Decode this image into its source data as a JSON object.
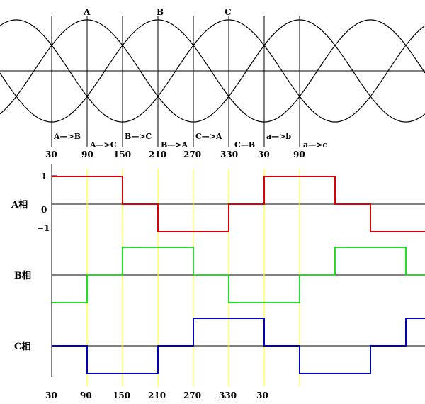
{
  "top": {
    "peak_labels": [
      "A",
      "B",
      "C"
    ],
    "segment_labels": [
      "A—>B",
      "A—>C",
      "B—>C",
      "B—>A",
      "C—>A",
      "C—B",
      "a—>b",
      "a—>c"
    ],
    "tick_labels": [
      "30",
      "90",
      "150",
      "210",
      "270",
      "330",
      "30",
      "90"
    ]
  },
  "bottom": {
    "level_labels": [
      "1",
      "0",
      "−1"
    ],
    "phase_labels": [
      "A相",
      "B相",
      "C相"
    ],
    "tick_labels": [
      "30",
      "90",
      "150",
      "210",
      "270",
      "330",
      "30"
    ],
    "colors": {
      "A": "#dd0000",
      "B": "#22dd22",
      "C": "#0000bb",
      "marker": "#ffff33"
    },
    "states": {
      "A": [
        1,
        1,
        0,
        -1,
        -1,
        0,
        1,
        1,
        0,
        -1,
        -1
      ],
      "B": [
        -1,
        0,
        1,
        1,
        0,
        -1,
        -1,
        0,
        1,
        1,
        0
      ],
      "C": [
        0,
        -1,
        -1,
        0,
        1,
        1,
        0,
        -1,
        -1,
        0,
        1
      ]
    }
  }
}
